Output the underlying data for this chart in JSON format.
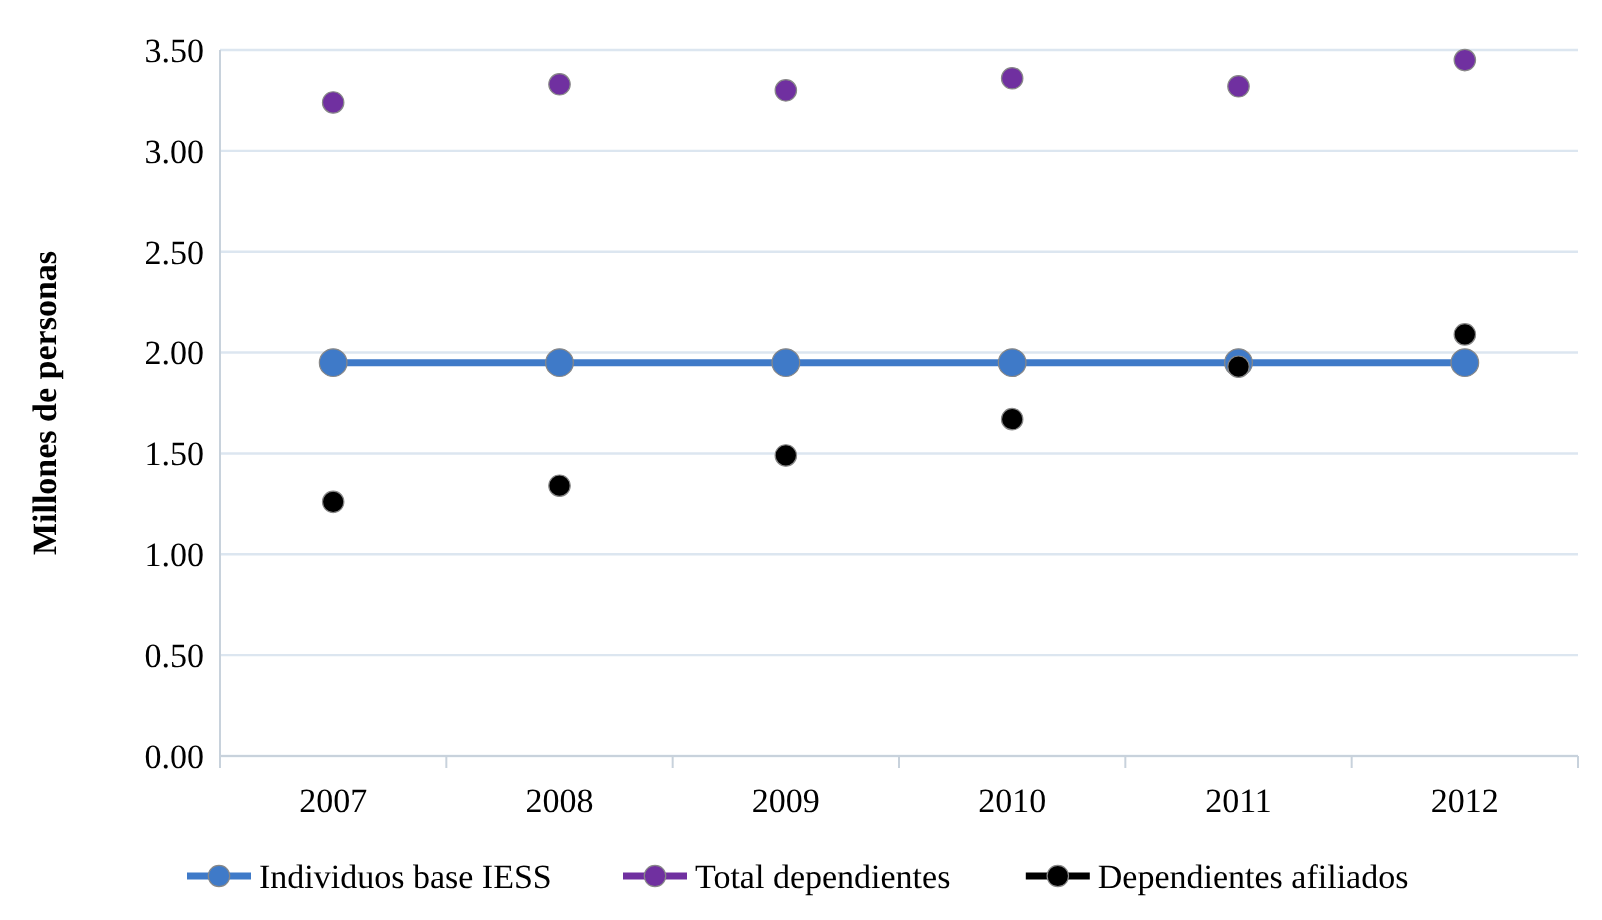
{
  "chart_data": {
    "type": "line",
    "ylabel": "Millones de personas",
    "categories": [
      "2007",
      "2008",
      "2009",
      "2010",
      "2011",
      "2012"
    ],
    "series": [
      {
        "name": "Individuos base IESS",
        "color": "#3f7ac8",
        "values": [
          1.95,
          1.95,
          1.95,
          1.95,
          1.95,
          1.95
        ]
      },
      {
        "name": "Total dependientes",
        "type": "scatter",
        "color": "#7030a0",
        "values": [
          3.24,
          3.33,
          3.3,
          3.36,
          3.32,
          3.45
        ]
      },
      {
        "name": "Dependientes afiliados",
        "type": "scatter",
        "color": "#000000",
        "values": [
          1.26,
          1.34,
          1.49,
          1.67,
          1.93,
          2.09
        ]
      }
    ],
    "ylim": [
      0,
      3.5
    ],
    "yticks": [
      {
        "value": 0,
        "label": "0.00"
      },
      {
        "value": 0.5,
        "label": "0.50"
      },
      {
        "value": 1,
        "label": "1.00"
      },
      {
        "value": 1.5,
        "label": "1.50"
      },
      {
        "value": 2,
        "label": "2.00"
      },
      {
        "value": 2.5,
        "label": "2.50"
      },
      {
        "value": 3,
        "label": "3.00"
      },
      {
        "value": 3.5,
        "label": "3.50"
      }
    ],
    "grid": "y",
    "legend": "bottom",
    "marker": "circle"
  }
}
